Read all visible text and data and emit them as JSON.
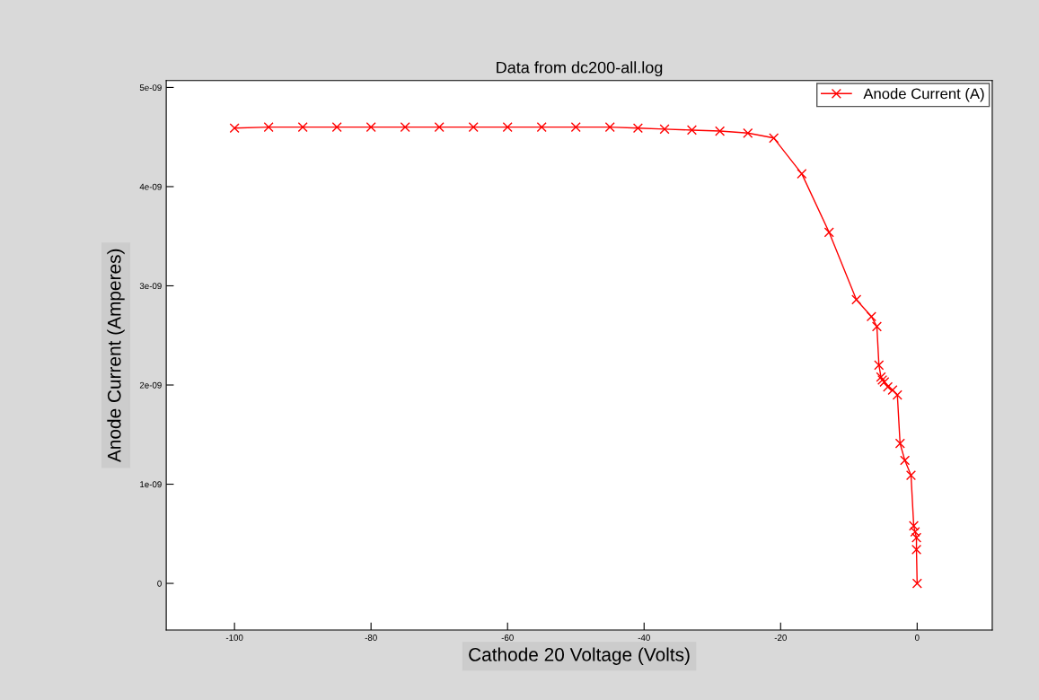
{
  "chart_data": {
    "type": "line",
    "title": "Data from dc200-all.log",
    "xlabel": "Cathode 20 Voltage (Volts)",
    "ylabel": "Anode Current (Amperes)",
    "x": [
      -100,
      -95,
      -90,
      -85,
      -80,
      -75,
      -70,
      -65,
      -60,
      -55,
      -50,
      -45,
      -40.9,
      -37,
      -33,
      -28.9,
      -24.8,
      -21,
      -16.9,
      -12.9,
      -8.9,
      -6.7,
      -5.9,
      -5.6,
      -5.3,
      -5.1,
      -4.8,
      -4.3,
      -3.6,
      -2.9,
      -2.5,
      -1.8,
      -0.9,
      -0.5,
      -0.3,
      -0.1,
      -0.1,
      0
    ],
    "series": [
      {
        "name": "Anode Current (A)",
        "color": "#ff0000",
        "values": [
          4.59e-09,
          4.6e-09,
          4.6e-09,
          4.6e-09,
          4.6e-09,
          4.6e-09,
          4.6e-09,
          4.6e-09,
          4.6e-09,
          4.6e-09,
          4.6e-09,
          4.6e-09,
          4.59e-09,
          4.58e-09,
          4.57e-09,
          4.56e-09,
          4.54e-09,
          4.49e-09,
          4.13e-09,
          3.54e-09,
          2.86e-09,
          2.69e-09,
          2.59e-09,
          2.2e-09,
          2.08e-09,
          2.05e-09,
          2.03e-09,
          1.98e-09,
          1.95e-09,
          1.9e-09,
          1.41e-09,
          1.24e-09,
          1.09e-09,
          5.8e-10,
          5.2e-10,
          4.6e-10,
          3.4e-10,
          0
        ]
      }
    ],
    "xlim": [
      -110,
      11
    ],
    "xticks": [
      -100,
      -80,
      -60,
      -40,
      -20,
      0
    ],
    "ylim": [
      -4.7e-10,
      5.07e-09
    ],
    "yticks": [
      {
        "value": 0,
        "label": "0"
      },
      {
        "value": 1e-09,
        "label": "1e-09"
      },
      {
        "value": 2e-09,
        "label": "2e-09"
      },
      {
        "value": 3e-09,
        "label": "3e-09"
      },
      {
        "value": 4e-09,
        "label": "4e-09"
      },
      {
        "value": 5e-09,
        "label": "5e-09"
      }
    ],
    "marker": "cross",
    "legend": "top right",
    "grid": false
  }
}
